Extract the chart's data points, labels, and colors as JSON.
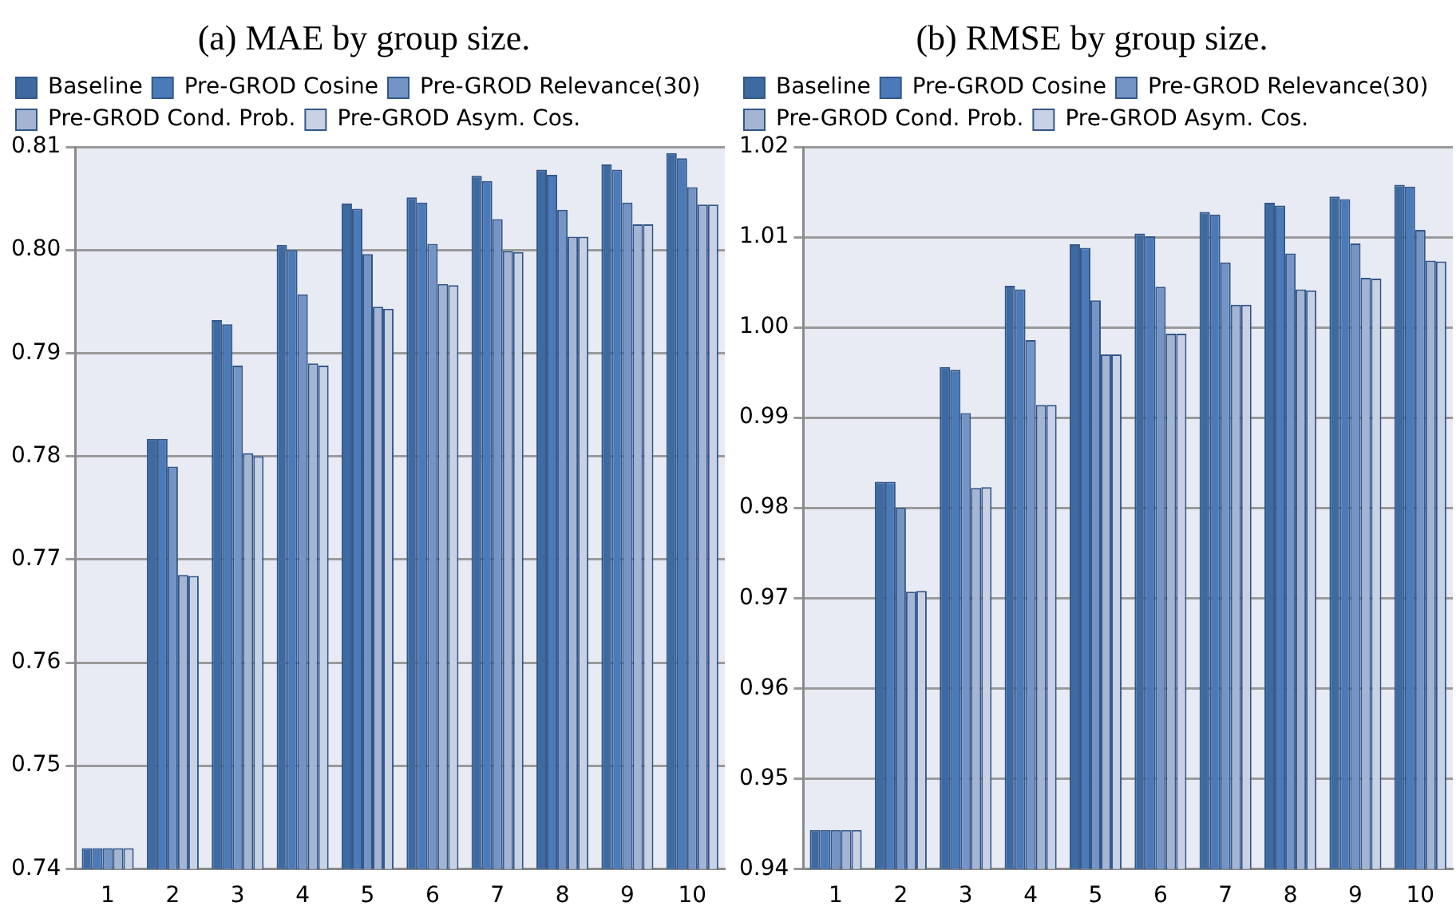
{
  "chart_data": [
    {
      "type": "bar",
      "title": "(a) MAE by group size.",
      "categories": [
        "1",
        "2",
        "3",
        "4",
        "5",
        "6",
        "7",
        "8",
        "9",
        "10"
      ],
      "series": [
        {
          "name": "Baseline",
          "color": "#3d6aa0",
          "values": [
            0.742,
            0.7817,
            0.7932,
            0.8005,
            0.8045,
            0.8051,
            0.8072,
            0.8078,
            0.8083,
            0.8094
          ]
        },
        {
          "name": "Pre-GROD Cosine",
          "color": "#4a7ab8",
          "values": [
            0.742,
            0.7817,
            0.7928,
            0.8,
            0.804,
            0.8046,
            0.8067,
            0.8073,
            0.8078,
            0.8089
          ]
        },
        {
          "name": "Pre-GROD Relevance(30)",
          "color": "#7394c4",
          "values": [
            0.742,
            0.779,
            0.7888,
            0.7957,
            0.7996,
            0.8006,
            0.803,
            0.8039,
            0.8046,
            0.8061
          ]
        },
        {
          "name": "Pre-GROD Cond. Prob.",
          "color": "#a3b5d3",
          "values": [
            0.742,
            0.7685,
            0.7803,
            0.789,
            0.7945,
            0.7967,
            0.7999,
            0.8013,
            0.8025,
            0.8044
          ]
        },
        {
          "name": "Pre-GROD Asym. Cos.",
          "color": "#c8d2e4",
          "values": [
            0.742,
            0.7684,
            0.78,
            0.7888,
            0.7943,
            0.7966,
            0.7998,
            0.8013,
            0.8025,
            0.8044
          ]
        }
      ],
      "ylim": [
        0.74,
        0.81
      ],
      "yticks": [
        0.74,
        0.75,
        0.76,
        0.77,
        0.78,
        0.79,
        {
          "value": 0.8,
          "label": "0.80"
        },
        0.81
      ],
      "grid": "y",
      "legend": "top left"
    },
    {
      "type": "bar",
      "title": "(b) RMSE by group size.",
      "categories": [
        "1",
        "2",
        "3",
        "4",
        "5",
        "6",
        "7",
        "8",
        "9",
        "10"
      ],
      "series": [
        {
          "name": "Baseline",
          "color": "#3d6aa0",
          "values": [
            0.9443,
            0.9829,
            0.9956,
            1.0046,
            1.0092,
            1.0104,
            1.0128,
            1.0138,
            1.0145,
            1.0158
          ]
        },
        {
          "name": "Pre-GROD Cosine",
          "color": "#4a7ab8",
          "values": [
            0.9443,
            0.9829,
            0.9953,
            1.0042,
            1.0088,
            1.0101,
            1.0125,
            1.0135,
            1.0142,
            1.0156
          ]
        },
        {
          "name": "Pre-GROD Relevance(30)",
          "color": "#7394c4",
          "values": [
            0.9443,
            0.98,
            0.9905,
            0.9986,
            1.003,
            1.0045,
            1.0072,
            1.0082,
            1.0093,
            1.0108
          ]
        },
        {
          "name": "Pre-GROD Cond. Prob.",
          "color": "#a3b5d3",
          "values": [
            0.9443,
            0.9707,
            0.9822,
            0.9914,
            0.997,
            0.9993,
            1.0025,
            1.0042,
            1.0055,
            1.0074
          ]
        },
        {
          "name": "Pre-GROD Asym. Cos.",
          "color": "#c8d2e4",
          "values": [
            0.9443,
            0.9708,
            0.9823,
            0.9914,
            0.997,
            0.9993,
            1.0025,
            1.0041,
            1.0054,
            1.0073
          ]
        }
      ],
      "ylim": [
        0.94,
        1.02
      ],
      "yticks": [
        0.94,
        0.95,
        0.96,
        0.97,
        0.98,
        0.99,
        {
          "value": 1,
          "label": "1.00"
        },
        1.01,
        1.02
      ],
      "grid": "y",
      "legend": "top left"
    }
  ]
}
